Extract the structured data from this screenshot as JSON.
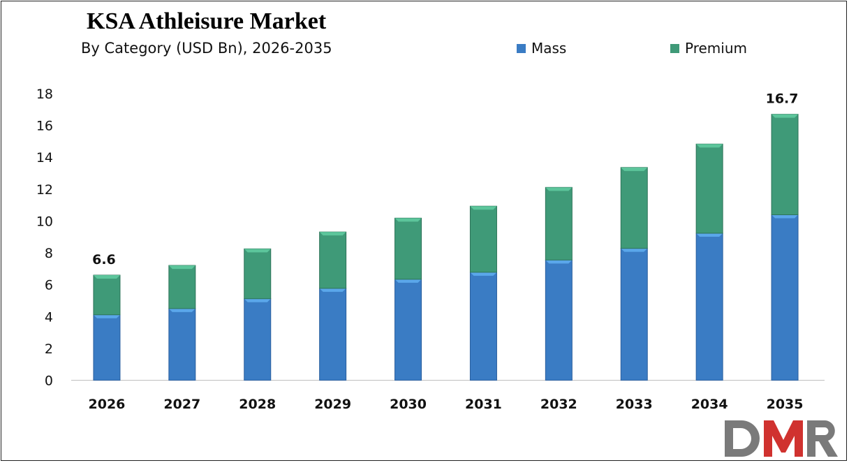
{
  "chart_data": {
    "type": "bar",
    "stacked": true,
    "title": "KSA Athleisure Market",
    "subtitle": "By Category (USD Bn), 2026-2035",
    "categories": [
      "2026",
      "2027",
      "2028",
      "2029",
      "2030",
      "2031",
      "2032",
      "2033",
      "2034",
      "2035"
    ],
    "series": [
      {
        "name": "Mass",
        "color": "#3a7cc4",
        "values": [
          4.11,
          4.5,
          5.12,
          5.77,
          6.34,
          6.78,
          7.55,
          8.28,
          9.23,
          10.39
        ]
      },
      {
        "name": "Premium",
        "color": "#3f9a78",
        "values": [
          2.49,
          2.71,
          3.13,
          3.54,
          3.84,
          4.15,
          4.56,
          5.08,
          5.6,
          6.31
        ]
      }
    ],
    "data_labels": [
      {
        "category": "2026",
        "text": "6.6"
      },
      {
        "category": "2035",
        "text": "16.7"
      }
    ],
    "ylim": [
      0,
      18
    ],
    "yticks": [
      "0",
      "2",
      "4",
      "6",
      "8",
      "10",
      "12",
      "14",
      "16",
      "18"
    ],
    "grid": false,
    "legend": "top-right",
    "xlabel": "",
    "ylabel": ""
  },
  "logo": {
    "text": "DMR",
    "colors": [
      "#7a7a7a",
      "#d0322f"
    ]
  }
}
